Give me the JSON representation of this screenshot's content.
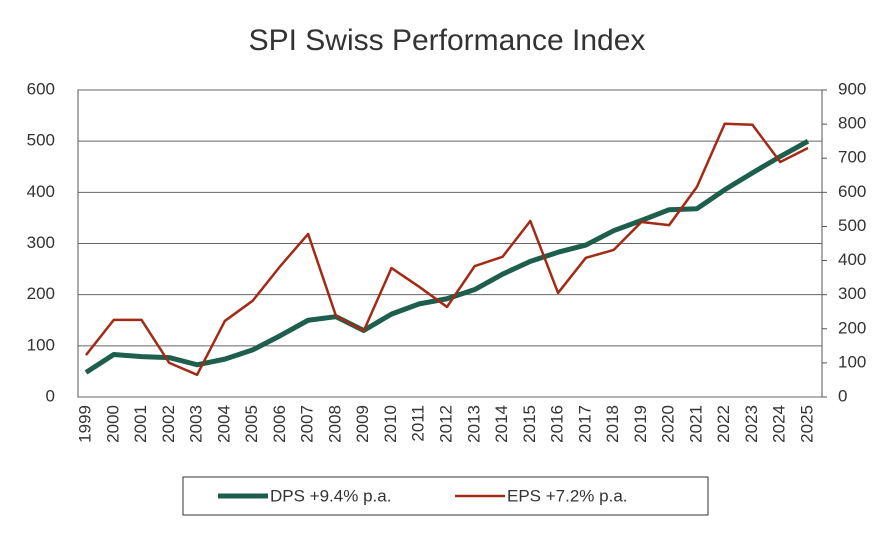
{
  "chart_data": {
    "type": "line",
    "title": "SPI Swiss Performance Index",
    "categories": [
      "1999",
      "2000",
      "2001",
      "2002",
      "2003",
      "2004",
      "2005",
      "2006",
      "2007",
      "2008",
      "2009",
      "2010",
      "2011",
      "2012",
      "2013",
      "2014",
      "2015",
      "2016",
      "2017",
      "2018",
      "2019",
      "2020",
      "2021",
      "2022",
      "2023",
      "2024",
      "2025"
    ],
    "series": [
      {
        "name": "DPS +9.4% p.a.",
        "color": "#1d5e4c",
        "width": 5,
        "values": [
          48,
          83,
          79,
          77,
          63,
          74,
          92,
          120,
          150,
          157,
          130,
          162,
          182,
          192,
          210,
          240,
          265,
          283,
          297,
          325,
          345,
          366,
          368,
          405,
          438,
          470,
          500
        ]
      },
      {
        "name": "EPS +7.2% p.a.",
        "color": "#a32a14",
        "width": 2.5,
        "axis": "y2",
        "values": [
          123,
          226,
          226,
          100,
          65,
          223,
          282,
          384,
          478,
          238,
          194,
          378,
          323,
          264,
          384,
          411,
          516,
          305,
          408,
          431,
          513,
          504,
          616,
          801,
          798,
          689,
          730
        ]
      }
    ],
    "ylim": [
      0,
      600
    ],
    "yticks": [
      0,
      100,
      200,
      300,
      400,
      500,
      600
    ],
    "y2lim": [
      0,
      900
    ],
    "y2ticks": [
      0,
      100,
      200,
      300,
      400,
      500,
      600,
      700,
      800,
      900
    ],
    "grid": true
  }
}
